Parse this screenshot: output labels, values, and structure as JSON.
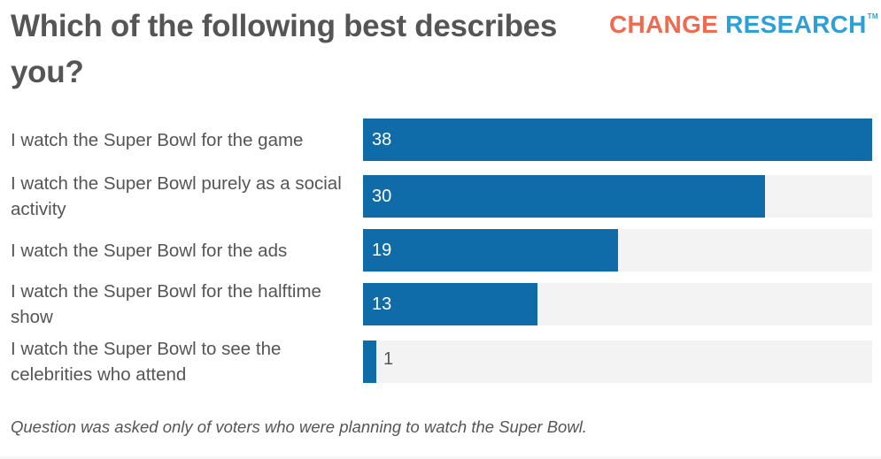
{
  "header": {
    "title": "Which of the following best describes you?",
    "brand_part1": "CHANGE",
    "brand_part2": "RESEARCH",
    "brand_tm": "TM"
  },
  "colors": {
    "bar": "#0f6ca8",
    "track": "#f3f3f3",
    "brand_change": "#ee6a50",
    "brand_research": "#2f9fd8",
    "text": "#555555"
  },
  "chart_data": {
    "type": "bar",
    "orientation": "horizontal",
    "title": "Which of the following best describes you?",
    "categories": [
      "I watch the Super Bowl for the game",
      "I watch the Super Bowl purely as a social activity",
      "I watch the Super Bowl for the ads",
      "I watch the Super Bowl for the halftime show",
      "I watch the Super Bowl to see the celebrities who attend"
    ],
    "values": [
      38,
      30,
      19,
      13,
      1
    ],
    "value_labels": [
      "38",
      "30",
      "19",
      "13",
      "1"
    ],
    "xlim": [
      0,
      38
    ],
    "xlabel": "",
    "ylabel": "",
    "grid": false,
    "legend": "none",
    "note": "Question was asked only of voters who were planning to watch the Super Bowl."
  }
}
